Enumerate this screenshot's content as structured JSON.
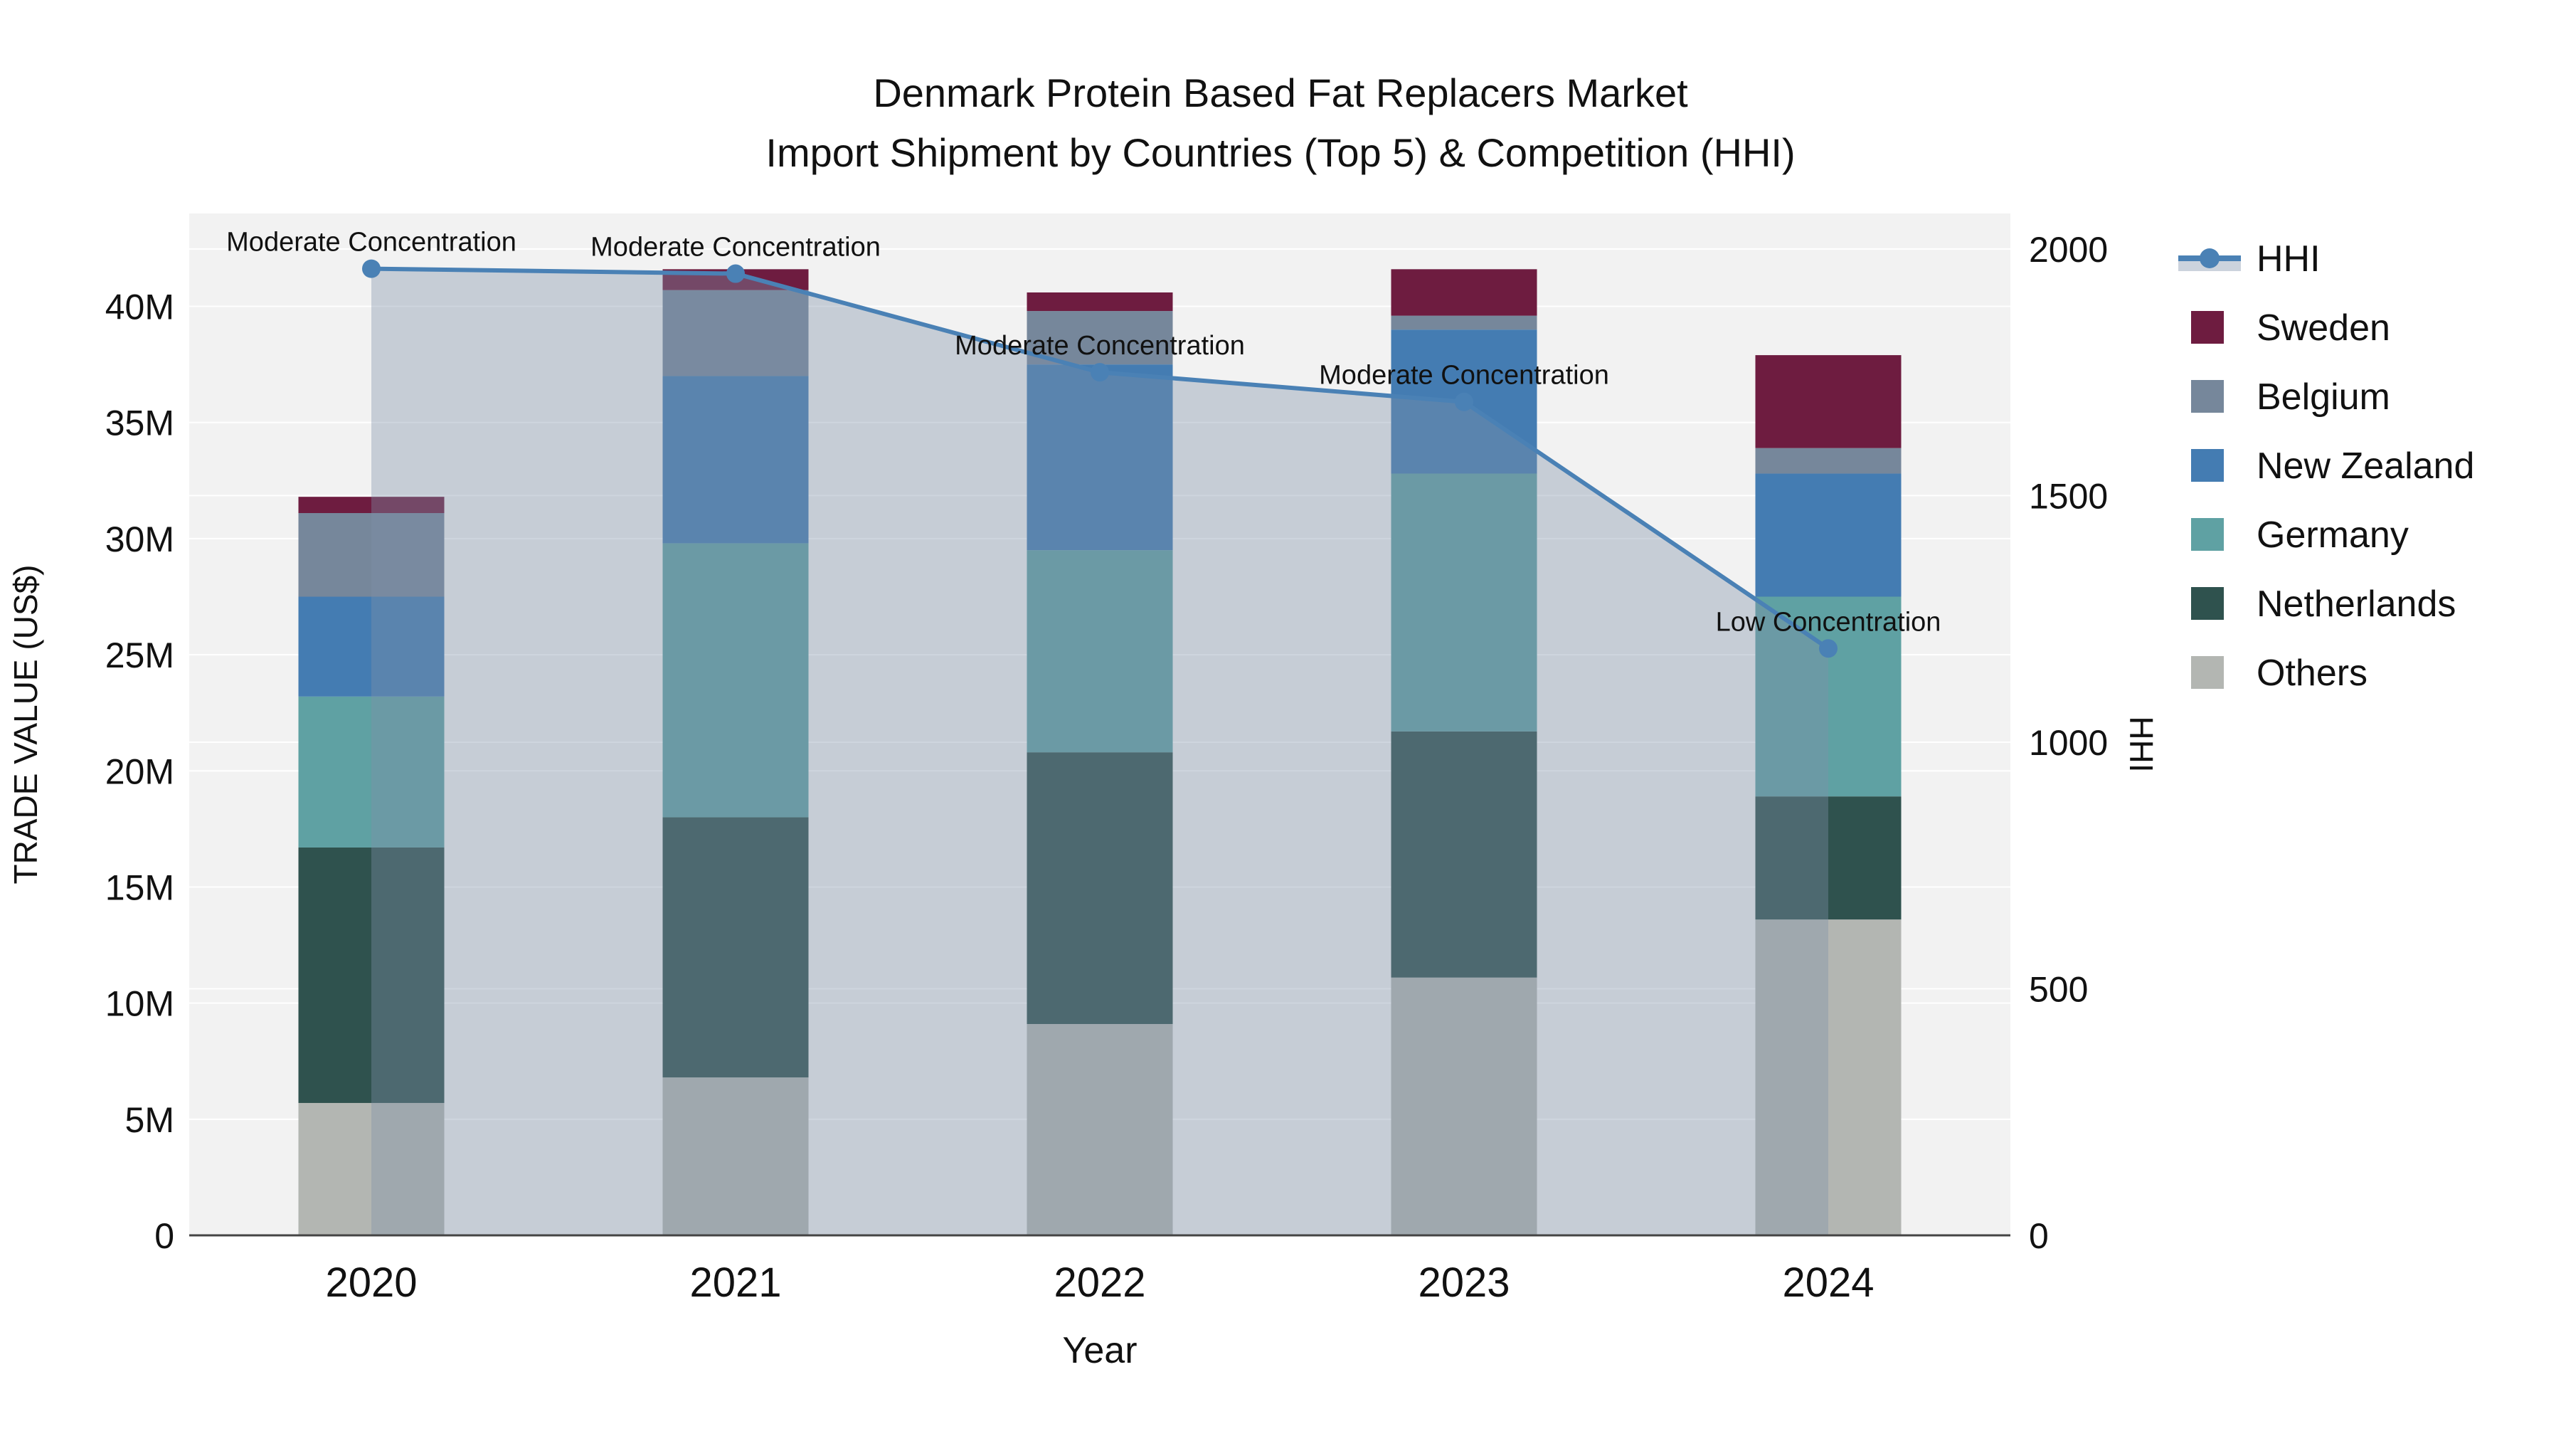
{
  "title": {
    "line1": "Denmark Protein Based Fat Replacers Market",
    "line2": "Import Shipment by Countries (Top 5) & Competition (HHI)"
  },
  "axes": {
    "x": {
      "title": "Year"
    },
    "y_left": {
      "title": "TRADE VALUE (US$)"
    },
    "y_right": {
      "title": "HHI"
    }
  },
  "colors": {
    "plot_background": "#f2f2f2",
    "gridline": "#ffffff",
    "axis_line": "#444444",
    "hhi_line": "#4a81b5",
    "hhi_fill": "rgba(126,144,168,0.38)",
    "annotation_text": "#111111"
  },
  "chart_data": {
    "type": "combo_stacked_bar_line",
    "title": "Denmark Protein Based Fat Replacers Market — Import Shipment by Countries (Top 5) & Competition (HHI)",
    "categories": [
      "2020",
      "2021",
      "2022",
      "2023",
      "2024"
    ],
    "bar_unit": "M US$",
    "stack_series_bottom_to_top": [
      {
        "name": "Others",
        "color": "#b3b6b2",
        "values": [
          5.7,
          6.8,
          9.1,
          11.1,
          13.6
        ]
      },
      {
        "name": "Netherlands",
        "color": "#2f524e",
        "values": [
          11.0,
          11.2,
          11.7,
          10.6,
          5.3
        ]
      },
      {
        "name": "Germany",
        "color": "#5fa1a3",
        "values": [
          6.5,
          11.8,
          8.7,
          11.1,
          8.6
        ]
      },
      {
        "name": "New Zealand",
        "color": "#447cb2",
        "values": [
          4.3,
          7.2,
          8.0,
          6.2,
          5.3
        ]
      },
      {
        "name": "Belgium",
        "color": "#76879b",
        "values": [
          3.6,
          3.7,
          2.3,
          0.6,
          1.1
        ]
      },
      {
        "name": "Sweden",
        "color": "#6e1c40",
        "values": [
          0.7,
          0.9,
          0.8,
          2.0,
          4.0
        ]
      }
    ],
    "bar_totals": [
      31.8,
      41.6,
      40.6,
      41.6,
      37.9
    ],
    "line_series": {
      "name": "HHI",
      "color": "#4a81b5",
      "values": [
        1960,
        1950,
        1750,
        1690,
        1190
      ],
      "annotations": [
        "Moderate Concentration",
        "Moderate Concentration",
        "Moderate Concentration",
        "Moderate Concentration",
        "Low Concentration"
      ]
    },
    "xlabel": "Year",
    "ylabel_left": "TRADE VALUE (US$)",
    "ylabel_right": "HHI",
    "y_left_ticks": {
      "values": [
        0,
        5,
        10,
        15,
        20,
        25,
        30,
        35,
        40
      ],
      "labels": [
        "0",
        "5M",
        "10M",
        "15M",
        "20M",
        "25M",
        "30M",
        "35M",
        "40M"
      ],
      "range": [
        0,
        44
      ]
    },
    "y_right_ticks": {
      "values": [
        0,
        500,
        1000,
        1500,
        2000
      ],
      "labels": [
        "0",
        "500",
        "1000",
        "1500",
        "2000"
      ],
      "range": [
        0,
        2072
      ]
    },
    "grid": true,
    "legend_position": "right",
    "legend_order": [
      "HHI",
      "Sweden",
      "Belgium",
      "New Zealand",
      "Germany",
      "Netherlands",
      "Others"
    ]
  }
}
